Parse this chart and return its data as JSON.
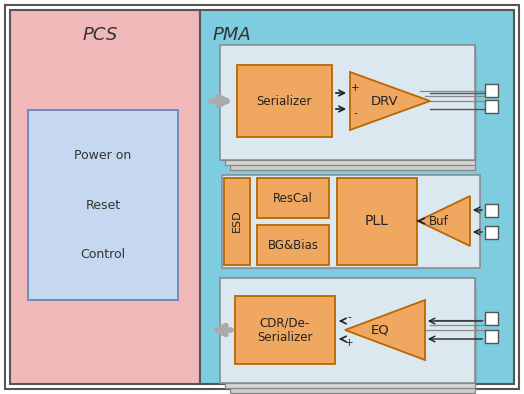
{
  "fig_width": 5.24,
  "fig_height": 3.94,
  "dpi": 100,
  "bg_color": "#ffffff",
  "pcs_bg": "#f0b8b8",
  "pma_bg": "#7ecce0",
  "inner_box_bg": "#dce8f0",
  "block_orange": "#f0a860",
  "block_blue_light": "#c5d8f0",
  "title_pcs": "PCS",
  "title_pma": "PMA",
  "label_power_on": "Power on\n\nReset\n\nControl",
  "label_serializer": "Serializer",
  "label_drv": "DRV",
  "label_rescal": "ResCal",
  "label_bgbias": "BG&Bias",
  "label_pll": "PLL",
  "label_buf": "Buf",
  "label_cdr": "CDR/De-\nSerializer",
  "label_eq": "EQ",
  "label_esd": "ESD"
}
